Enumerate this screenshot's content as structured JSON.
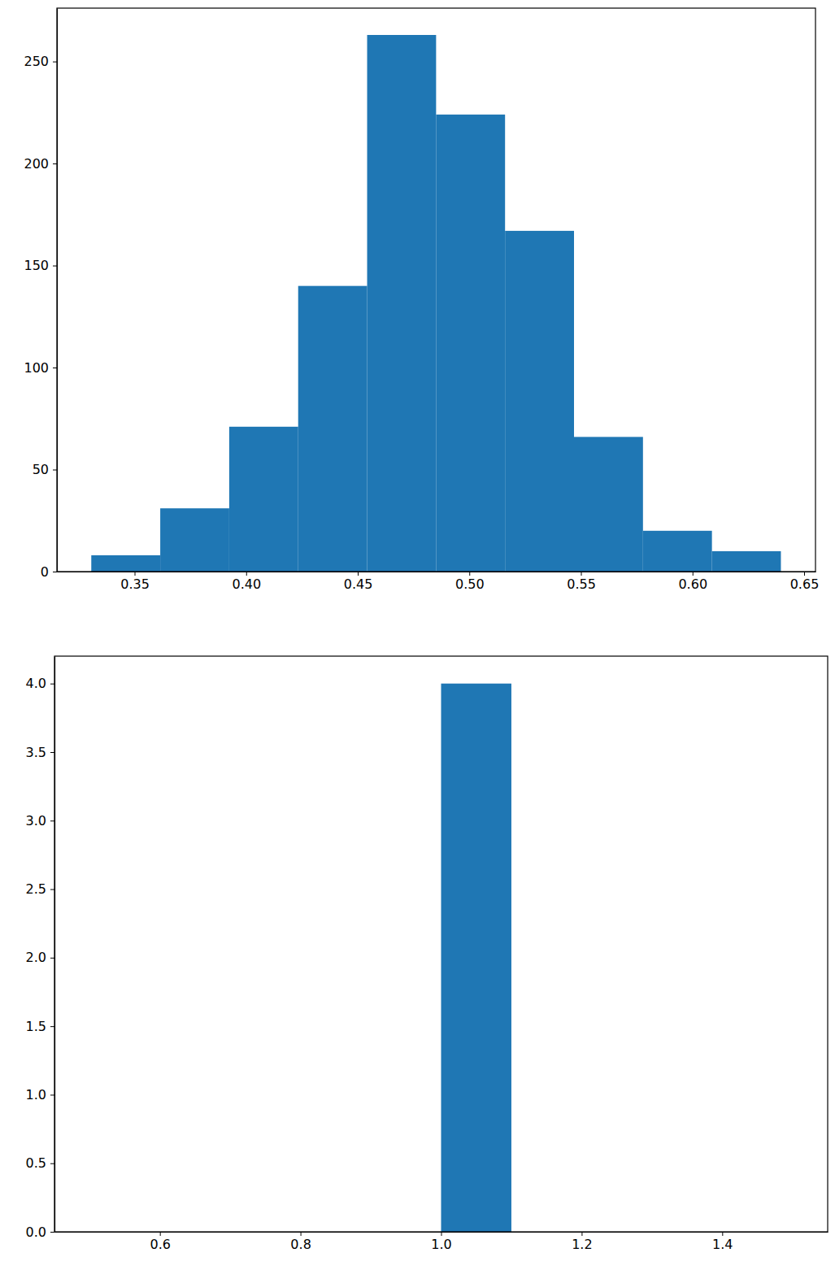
{
  "chart_data": [
    {
      "type": "histogram",
      "bins": [
        0.3306,
        0.3615,
        0.3924,
        0.4233,
        0.4542,
        0.4851,
        0.516,
        0.5469,
        0.5778,
        0.6087,
        0.6396
      ],
      "counts": [
        8,
        31,
        71,
        140,
        263,
        224,
        167,
        66,
        20,
        10
      ],
      "color": "#1f77b4",
      "xlim": [
        0.3152,
        0.6551
      ],
      "ylim": [
        0,
        276.15
      ],
      "xticks": [
        0.35,
        {
          "value": 0.4,
          "label": "0.40"
        },
        0.45,
        {
          "value": 0.5,
          "label": "0.50"
        },
        0.55,
        {
          "value": 0.6,
          "label": "0.60"
        },
        0.65
      ],
      "yticks": [
        0,
        50,
        100,
        150,
        200,
        250
      ]
    },
    {
      "type": "histogram",
      "bins": [
        0.5,
        0.6,
        0.7,
        0.8,
        0.9,
        1.0,
        1.1,
        1.2,
        1.3,
        1.4,
        1.5
      ],
      "counts": [
        0,
        0,
        0,
        0,
        0,
        4,
        0,
        0,
        0,
        0
      ],
      "color": "#1f77b4",
      "xlim": [
        0.45,
        1.55
      ],
      "ylim": [
        0,
        4.2
      ],
      "xticks": [
        0.6,
        0.8,
        {
          "value": 1.0,
          "label": "1.0"
        },
        1.2,
        1.4
      ],
      "yticks": [
        {
          "value": 0,
          "label": "0.0"
        },
        0.5,
        {
          "value": 1,
          "label": "1.0"
        },
        1.5,
        {
          "value": 2,
          "label": "2.0"
        },
        2.5,
        {
          "value": 3,
          "label": "3.0"
        },
        3.5,
        {
          "value": 4,
          "label": "4.0"
        }
      ]
    }
  ]
}
